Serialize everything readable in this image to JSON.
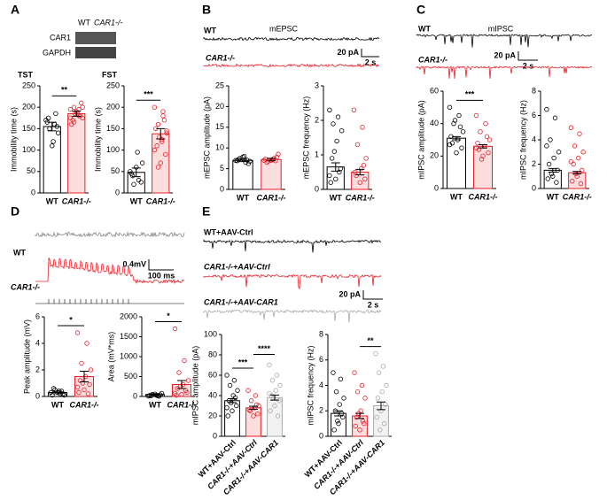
{
  "figure": {
    "panels": [
      "A",
      "B",
      "C",
      "D",
      "E"
    ],
    "blot": {
      "lanes": [
        "WT",
        "CAR1-/-"
      ],
      "bands": [
        "CAR1",
        "GAPDH"
      ]
    },
    "traces": {
      "B": {
        "title": "mEPSC",
        "labels": [
          "WT",
          "CAR1-/-"
        ],
        "scale_y": "20 pA",
        "scale_x": "2 s"
      },
      "C": {
        "title": "mIPSC",
        "labels": [
          "WT",
          "CAR1-/-"
        ],
        "scale_y": "20 pA",
        "scale_x": "2 s"
      },
      "D": {
        "labels": [
          "WT",
          "CAR1-/-"
        ],
        "scale_y": "0.4mV",
        "scale_x": "100 ms"
      },
      "E": {
        "labels": [
          "WT+AAV-Ctrl",
          "CAR1-/-+AAV-Ctrl",
          "CAR1-/-+AAV-CAR1"
        ],
        "scale_y": "20 pA",
        "scale_x": "2 s"
      }
    }
  },
  "chart_data": [
    {
      "type": "bar",
      "title": "TST",
      "ylabel": "Immobility time (s)",
      "categories": [
        "WT",
        "CAR1-/-"
      ],
      "colors": [
        "#000000",
        "#e8202a"
      ],
      "values": [
        155,
        185
      ],
      "errors": [
        10,
        6
      ],
      "points": [
        [
          170,
          160,
          150,
          140,
          120,
          175,
          155,
          110,
          165,
          185
        ],
        [
          195,
          180,
          200,
          175,
          185,
          170,
          210,
          190,
          160,
          180,
          185,
          175,
          195,
          165,
          200
        ]
      ],
      "ylim": [
        0,
        250
      ],
      "yticks": [
        0,
        50,
        100,
        150,
        200,
        250
      ],
      "significance": [
        {
          "label": "**",
          "pair": [
            0,
            1
          ]
        }
      ]
    },
    {
      "type": "bar",
      "title": "FST",
      "ylabel": "Immobility time (s)",
      "categories": [
        "WT",
        "CAR1-/-"
      ],
      "colors": [
        "#000000",
        "#e8202a"
      ],
      "values": [
        48,
        138
      ],
      "errors": [
        10,
        12
      ],
      "points": [
        [
          50,
          30,
          20,
          70,
          95,
          40,
          25,
          60,
          45
        ],
        [
          200,
          180,
          160,
          140,
          120,
          110,
          90,
          70,
          150,
          170,
          130,
          100,
          190,
          60,
          145,
          125
        ]
      ],
      "ylim": [
        0,
        250
      ],
      "yticks": [
        0,
        50,
        100,
        150,
        200,
        250
      ],
      "significance": [
        {
          "label": "***",
          "pair": [
            0,
            1
          ]
        }
      ]
    },
    {
      "type": "bar",
      "ylabel": "mEPSC amplitude (pA)",
      "categories": [
        "WT",
        "CAR1-/-"
      ],
      "colors": [
        "#000000",
        "#e8202a"
      ],
      "values": [
        7,
        7.2
      ],
      "errors": [
        0.3,
        0.3
      ],
      "points": [
        [
          7,
          6.5,
          7.5,
          6.8,
          8,
          7.2,
          6.2,
          7.8,
          6.9,
          7.1
        ],
        [
          7,
          7.5,
          6.8,
          8.5,
          7.2,
          6.5,
          7.8,
          7,
          7.3,
          6.9
        ]
      ],
      "ylim": [
        0,
        25
      ],
      "yticks": [
        0,
        5,
        10,
        15,
        20,
        25
      ]
    },
    {
      "type": "bar",
      "ylabel": "mEPSC frequency (Hz)",
      "categories": [
        "WT",
        "CAR1-/-"
      ],
      "colors": [
        "#000000",
        "#e8202a"
      ],
      "values": [
        0.65,
        0.5
      ],
      "errors": [
        0.12,
        0.08
      ],
      "points": [
        [
          2.3,
          2.1,
          1.9,
          1.7,
          1.4,
          0.9,
          0.6,
          0.3,
          0.2,
          0.5,
          1.1,
          0.4
        ],
        [
          2.3,
          1.8,
          1.3,
          0.9,
          0.6,
          0.4,
          0.3,
          0.2,
          0.5,
          0.7
        ]
      ],
      "ylim": [
        0,
        3
      ],
      "yticks": [
        0,
        1,
        2,
        3
      ]
    },
    {
      "type": "bar",
      "ylabel": "mIPSC amplitude (pA)",
      "categories": [
        "WT",
        "CAR1-/-"
      ],
      "colors": [
        "#000000",
        "#e8202a"
      ],
      "values": [
        31,
        26
      ],
      "errors": [
        1,
        1
      ],
      "points": [
        [
          50,
          45,
          40,
          35,
          30,
          28,
          25,
          22,
          32,
          38,
          42,
          27
        ],
        [
          45,
          40,
          35,
          30,
          26,
          24,
          22,
          20,
          28,
          32,
          18,
          25
        ]
      ],
      "ylim": [
        0,
        60
      ],
      "yticks": [
        0,
        20,
        40,
        60
      ],
      "significance": [
        {
          "label": "***",
          "pair": [
            0,
            1
          ]
        }
      ]
    },
    {
      "type": "bar",
      "ylabel": "mIPSC frequency (Hz)",
      "categories": [
        "WT",
        "CAR1-/-"
      ],
      "colors": [
        "#000000",
        "#e8202a"
      ],
      "values": [
        1.5,
        1.3
      ],
      "errors": [
        0.15,
        0.1
      ],
      "points": [
        [
          6.5,
          5.8,
          4,
          3,
          2.5,
          2,
          1.5,
          1,
          0.8,
          0.5,
          1.2,
          3.5
        ],
        [
          5,
          4.5,
          3.5,
          3,
          2.5,
          2,
          1.5,
          1,
          0.6,
          0.4,
          1.2,
          2.2
        ]
      ],
      "ylim": [
        0,
        8
      ],
      "yticks": [
        0,
        2,
        4,
        6,
        8
      ]
    },
    {
      "type": "bar",
      "ylabel": "Peak amplitude (mV)",
      "categories": [
        "WT",
        "CAR1-/-"
      ],
      "colors": [
        "#000000",
        "#e8202a"
      ],
      "values": [
        0.3,
        1.5
      ],
      "errors": [
        0.1,
        0.4
      ],
      "points": [
        [
          0.3,
          0.2,
          0.5,
          0.1,
          0.4,
          0.6,
          0.2,
          0.3,
          0.1,
          0.4
        ],
        [
          4.8,
          4,
          2.5,
          2,
          1.5,
          1.2,
          0.9,
          0.5,
          0.3,
          0.2,
          1,
          0.7
        ]
      ],
      "ylim": [
        0,
        6
      ],
      "yticks": [
        0,
        2,
        4,
        6
      ],
      "significance": [
        {
          "label": "*",
          "pair": [
            0,
            1
          ]
        }
      ]
    },
    {
      "type": "bar",
      "ylabel": "Area (mV*ms)",
      "categories": [
        "WT",
        "CAR1-/-"
      ],
      "colors": [
        "#000000",
        "#e8202a"
      ],
      "values": [
        50,
        300
      ],
      "errors": [
        20,
        100
      ],
      "points": [
        [
          10,
          20,
          50,
          80,
          30,
          15,
          40,
          60,
          25,
          5
        ],
        [
          1700,
          900,
          600,
          400,
          300,
          200,
          100,
          50,
          30,
          150,
          250,
          80
        ]
      ],
      "ylim": [
        0,
        2000
      ],
      "yticks": [
        0,
        500,
        1000,
        1500,
        2000
      ],
      "significance": [
        {
          "label": "*",
          "pair": [
            0,
            1
          ]
        }
      ]
    },
    {
      "type": "bar",
      "ylabel": "mIPSC amplitude (pA)",
      "categories": [
        "WT+AAV-Ctrl",
        "CAR1-/-+AAV-Ctrl",
        "CAR1-/-+AAV-CAR1"
      ],
      "colors": [
        "#000000",
        "#e8202a",
        "#aaaaaa"
      ],
      "values": [
        35,
        28,
        38
      ],
      "errors": [
        2,
        1.5,
        2.5
      ],
      "points": [
        [
          60,
          55,
          50,
          45,
          40,
          35,
          30,
          25,
          20,
          38,
          33,
          28
        ],
        [
          45,
          40,
          35,
          30,
          28,
          25,
          22,
          20,
          26,
          31
        ],
        [
          70,
          60,
          55,
          50,
          45,
          40,
          35,
          30,
          25,
          20,
          38,
          42
        ]
      ],
      "ylim": [
        0,
        100
      ],
      "yticks": [
        0,
        20,
        40,
        60,
        80,
        100
      ],
      "significance": [
        {
          "label": "***",
          "pair": [
            0,
            1
          ]
        },
        {
          "label": "****",
          "pair": [
            1,
            2
          ]
        }
      ]
    },
    {
      "type": "bar",
      "ylabel": "mIPSC frequency (Hz)",
      "categories": [
        "WT+AAV-Ctrl",
        "CAR1-/-+AAV-Ctrl",
        "CAR1-/-+AAV-CAR1"
      ],
      "colors": [
        "#000000",
        "#e8202a",
        "#aaaaaa"
      ],
      "values": [
        1.8,
        1.6,
        2.4
      ],
      "errors": [
        0.2,
        0.2,
        0.3
      ],
      "points": [
        [
          5,
          4.5,
          3.5,
          3,
          2.5,
          2,
          1.5,
          1,
          0.5,
          1.8,
          1.2
        ],
        [
          5,
          4,
          3.5,
          3,
          2,
          1.5,
          1,
          0.5,
          0.8,
          1.2,
          1.8
        ],
        [
          6.5,
          5.5,
          5,
          4,
          3.5,
          3,
          2.5,
          2,
          1.5,
          1,
          0.5
        ]
      ],
      "ylim": [
        0,
        8
      ],
      "yticks": [
        0,
        2,
        4,
        6,
        8
      ],
      "significance": [
        {
          "label": "**",
          "pair": [
            1,
            2
          ]
        }
      ]
    }
  ]
}
